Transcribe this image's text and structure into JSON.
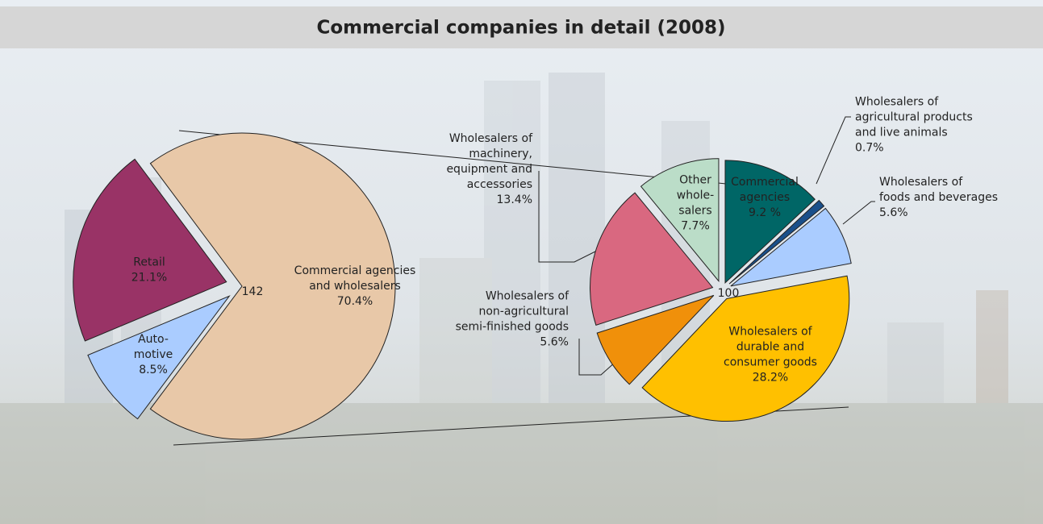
{
  "title": "Commercial companies in detail (2008)",
  "chart_data": [
    {
      "type": "pie",
      "center_label": "142",
      "categories": [
        [
          "Commercial agencies",
          "and wholesalers"
        ],
        [
          "Auto-",
          "motive"
        ],
        [
          "Retail"
        ]
      ],
      "values": [
        70.4,
        8.5,
        21.1
      ],
      "value_labels": [
        "70.4%",
        "8.5%",
        "21.1%"
      ],
      "colors": [
        "#e8c8a8",
        "#aaccff",
        "#993366"
      ]
    },
    {
      "type": "pie",
      "center_label": "100",
      "categories": [
        [
          "Commercial",
          "agencies"
        ],
        [
          "Wholesalers of",
          "agricultural products",
          "and live animals"
        ],
        [
          "Wholesalers of",
          "foods and beverages"
        ],
        [
          "Wholesalers of",
          "durable and",
          "consumer goods"
        ],
        [
          "Wholesalers of",
          "non-agricultural",
          "semi-finished goods"
        ],
        [
          "Wholesalers of",
          "machinery,",
          "equipment and",
          "accessories"
        ],
        [
          "Other",
          "whole-",
          "salers"
        ]
      ],
      "values": [
        9.2,
        0.7,
        5.6,
        28.2,
        5.6,
        13.4,
        7.7
      ],
      "value_labels": [
        "9.2 %",
        "0.7%",
        "5.6%",
        "28.2%",
        "5.6%",
        "13.4%",
        "7.7%"
      ],
      "colors": [
        "#006666",
        "#1a4f8a",
        "#aaccff",
        "#ffc000",
        "#f0900a",
        "#d96880",
        "#bbddc8"
      ]
    }
  ]
}
